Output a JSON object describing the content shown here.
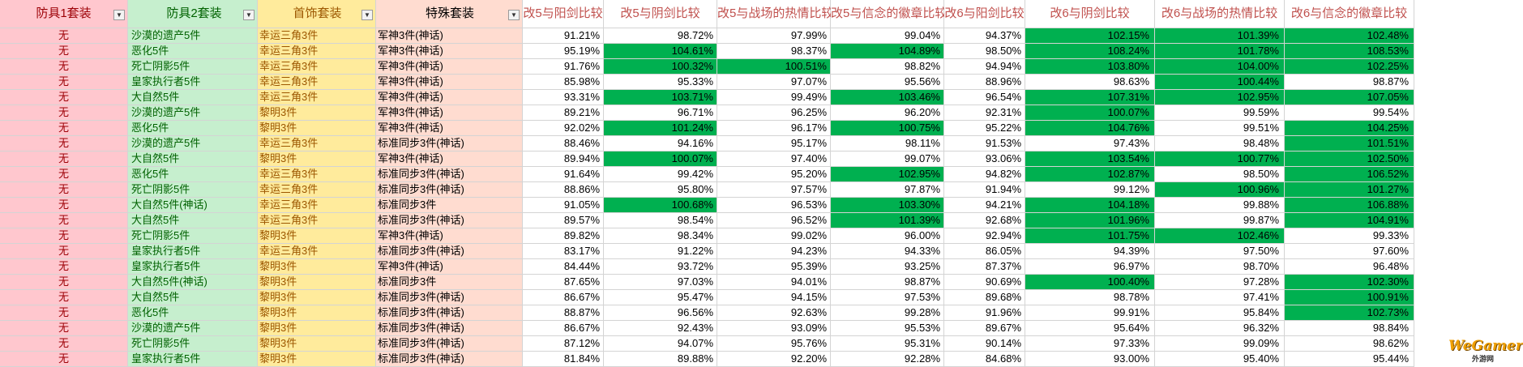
{
  "headers": [
    "防具1套装",
    "防具2套装",
    "首饰套装",
    "特殊套装",
    "改5与阳剑比较",
    "改5与阴剑比较",
    "改5与战场的热情比较",
    "改5与信念的徽章比较",
    "改6与阳剑比较",
    "改6与阴剑比较",
    "改6与战场的热情比较",
    "改6与信念的徽章比较"
  ],
  "filter_icons": [
    "filter-dropdown-icon",
    "filter-active-icon",
    "filter-active-icon",
    "filter-active-icon"
  ],
  "highlight_color": "#00b050",
  "rows": [
    {
      "cells": [
        "无",
        "沙漠的遗产5件",
        "幸运三角3件",
        "军神3件(神话)",
        "91.21%",
        "98.72%",
        "97.99%",
        "99.04%",
        "94.37%",
        "102.15%",
        "101.39%",
        "102.48%"
      ],
      "hl": [
        0,
        0,
        0,
        0,
        0,
        0,
        0,
        0,
        0,
        1,
        1,
        1
      ]
    },
    {
      "cells": [
        "无",
        "恶化5件",
        "幸运三角3件",
        "军神3件(神话)",
        "95.19%",
        "104.61%",
        "98.37%",
        "104.89%",
        "98.50%",
        "108.24%",
        "101.78%",
        "108.53%"
      ],
      "hl": [
        0,
        0,
        0,
        0,
        0,
        1,
        0,
        1,
        0,
        1,
        1,
        1
      ]
    },
    {
      "cells": [
        "无",
        "死亡阴影5件",
        "幸运三角3件",
        "军神3件(神话)",
        "91.76%",
        "100.32%",
        "100.51%",
        "98.82%",
        "94.94%",
        "103.80%",
        "104.00%",
        "102.25%"
      ],
      "hl": [
        0,
        0,
        0,
        0,
        0,
        1,
        1,
        0,
        0,
        1,
        1,
        1
      ]
    },
    {
      "cells": [
        "无",
        "皇家执行者5件",
        "幸运三角3件",
        "军神3件(神话)",
        "85.98%",
        "95.33%",
        "97.07%",
        "95.56%",
        "88.96%",
        "98.63%",
        "100.44%",
        "98.87%"
      ],
      "hl": [
        0,
        0,
        0,
        0,
        0,
        0,
        0,
        0,
        0,
        0,
        1,
        0
      ]
    },
    {
      "cells": [
        "无",
        "大自然5件",
        "幸运三角3件",
        "军神3件(神话)",
        "93.31%",
        "103.71%",
        "99.49%",
        "103.46%",
        "96.54%",
        "107.31%",
        "102.95%",
        "107.05%"
      ],
      "hl": [
        0,
        0,
        0,
        0,
        0,
        1,
        0,
        1,
        0,
        1,
        1,
        1
      ]
    },
    {
      "cells": [
        "无",
        "沙漠的遗产5件",
        "黎明3件",
        "军神3件(神话)",
        "89.21%",
        "96.71%",
        "96.25%",
        "96.20%",
        "92.31%",
        "100.07%",
        "99.59%",
        "99.54%"
      ],
      "hl": [
        0,
        0,
        0,
        0,
        0,
        0,
        0,
        0,
        0,
        1,
        0,
        0
      ]
    },
    {
      "cells": [
        "无",
        "恶化5件",
        "黎明3件",
        "军神3件(神话)",
        "92.02%",
        "101.24%",
        "96.17%",
        "100.75%",
        "95.22%",
        "104.76%",
        "99.51%",
        "104.25%"
      ],
      "hl": [
        0,
        0,
        0,
        0,
        0,
        1,
        0,
        1,
        0,
        1,
        0,
        1
      ]
    },
    {
      "cells": [
        "无",
        "沙漠的遗产5件",
        "幸运三角3件",
        "标准同步3件(神话)",
        "88.46%",
        "94.16%",
        "95.17%",
        "98.11%",
        "91.53%",
        "97.43%",
        "98.48%",
        "101.51%"
      ],
      "hl": [
        0,
        0,
        0,
        0,
        0,
        0,
        0,
        0,
        0,
        0,
        0,
        1
      ]
    },
    {
      "cells": [
        "无",
        "大自然5件",
        "黎明3件",
        "军神3件(神话)",
        "89.94%",
        "100.07%",
        "97.40%",
        "99.07%",
        "93.06%",
        "103.54%",
        "100.77%",
        "102.50%"
      ],
      "hl": [
        0,
        0,
        0,
        0,
        0,
        1,
        0,
        0,
        0,
        1,
        1,
        1
      ]
    },
    {
      "cells": [
        "无",
        "恶化5件",
        "幸运三角3件",
        "标准同步3件(神话)",
        "91.64%",
        "99.42%",
        "95.20%",
        "102.95%",
        "94.82%",
        "102.87%",
        "98.50%",
        "106.52%"
      ],
      "hl": [
        0,
        0,
        0,
        0,
        0,
        0,
        0,
        1,
        0,
        1,
        0,
        1
      ]
    },
    {
      "cells": [
        "无",
        "死亡阴影5件",
        "幸运三角3件",
        "标准同步3件(神话)",
        "88.86%",
        "95.80%",
        "97.57%",
        "97.87%",
        "91.94%",
        "99.12%",
        "100.96%",
        "101.27%"
      ],
      "hl": [
        0,
        0,
        0,
        0,
        0,
        0,
        0,
        0,
        0,
        0,
        1,
        1
      ]
    },
    {
      "cells": [
        "无",
        "大自然5件(神话)",
        "幸运三角3件",
        "标准同步3件",
        "91.05%",
        "100.68%",
        "96.53%",
        "103.30%",
        "94.21%",
        "104.18%",
        "99.88%",
        "106.88%"
      ],
      "hl": [
        0,
        0,
        0,
        0,
        0,
        1,
        0,
        1,
        0,
        1,
        0,
        1
      ]
    },
    {
      "cells": [
        "无",
        "大自然5件",
        "幸运三角3件",
        "标准同步3件(神话)",
        "89.57%",
        "98.54%",
        "96.52%",
        "101.39%",
        "92.68%",
        "101.96%",
        "99.87%",
        "104.91%"
      ],
      "hl": [
        0,
        0,
        0,
        0,
        0,
        0,
        0,
        1,
        0,
        1,
        0,
        1
      ]
    },
    {
      "cells": [
        "无",
        "死亡阴影5件",
        "黎明3件",
        "军神3件(神话)",
        "89.82%",
        "98.34%",
        "99.02%",
        "96.00%",
        "92.94%",
        "101.75%",
        "102.46%",
        "99.33%"
      ],
      "hl": [
        0,
        0,
        0,
        0,
        0,
        0,
        0,
        0,
        0,
        1,
        1,
        0
      ]
    },
    {
      "cells": [
        "无",
        "皇家执行者5件",
        "幸运三角3件",
        "标准同步3件(神话)",
        "83.17%",
        "91.22%",
        "94.23%",
        "94.33%",
        "86.05%",
        "94.39%",
        "97.50%",
        "97.60%"
      ],
      "hl": [
        0,
        0,
        0,
        0,
        0,
        0,
        0,
        0,
        0,
        0,
        0,
        0
      ]
    },
    {
      "cells": [
        "无",
        "皇家执行者5件",
        "黎明3件",
        "军神3件(神话)",
        "84.44%",
        "93.72%",
        "95.39%",
        "93.25%",
        "87.37%",
        "96.97%",
        "98.70%",
        "96.48%"
      ],
      "hl": [
        0,
        0,
        0,
        0,
        0,
        0,
        0,
        0,
        0,
        0,
        0,
        0
      ]
    },
    {
      "cells": [
        "无",
        "大自然5件(神话)",
        "黎明3件",
        "标准同步3件",
        "87.65%",
        "97.03%",
        "94.01%",
        "98.87%",
        "90.69%",
        "100.40%",
        "97.28%",
        "102.30%"
      ],
      "hl": [
        0,
        0,
        0,
        0,
        0,
        0,
        0,
        0,
        0,
        1,
        0,
        1
      ]
    },
    {
      "cells": [
        "无",
        "大自然5件",
        "黎明3件",
        "标准同步3件(神话)",
        "86.67%",
        "95.47%",
        "94.15%",
        "97.53%",
        "89.68%",
        "98.78%",
        "97.41%",
        "100.91%"
      ],
      "hl": [
        0,
        0,
        0,
        0,
        0,
        0,
        0,
        0,
        0,
        0,
        0,
        1
      ]
    },
    {
      "cells": [
        "无",
        "恶化5件",
        "黎明3件",
        "标准同步3件(神话)",
        "88.87%",
        "96.56%",
        "92.63%",
        "99.28%",
        "91.96%",
        "99.91%",
        "95.84%",
        "102.73%"
      ],
      "hl": [
        0,
        0,
        0,
        0,
        0,
        0,
        0,
        0,
        0,
        0,
        0,
        1
      ]
    },
    {
      "cells": [
        "无",
        "沙漠的遗产5件",
        "黎明3件",
        "标准同步3件(神话)",
        "86.67%",
        "92.43%",
        "93.09%",
        "95.53%",
        "89.67%",
        "95.64%",
        "96.32%",
        "98.84%"
      ],
      "hl": [
        0,
        0,
        0,
        0,
        0,
        0,
        0,
        0,
        0,
        0,
        0,
        0
      ]
    },
    {
      "cells": [
        "无",
        "死亡阴影5件",
        "黎明3件",
        "标准同步3件(神话)",
        "87.12%",
        "94.07%",
        "95.76%",
        "95.31%",
        "90.14%",
        "97.33%",
        "99.09%",
        "98.62%"
      ],
      "hl": [
        0,
        0,
        0,
        0,
        0,
        0,
        0,
        0,
        0,
        0,
        0,
        0
      ]
    },
    {
      "cells": [
        "无",
        "皇家执行者5件",
        "黎明3件",
        "标准同步3件(神话)",
        "81.84%",
        "89.88%",
        "92.20%",
        "92.28%",
        "84.68%",
        "93.00%",
        "95.40%",
        "95.44%"
      ],
      "hl": [
        0,
        0,
        0,
        0,
        0,
        0,
        0,
        0,
        0,
        0,
        0,
        0
      ]
    }
  ],
  "watermark": {
    "brand": "WeGamer",
    "sub": "外游网"
  }
}
